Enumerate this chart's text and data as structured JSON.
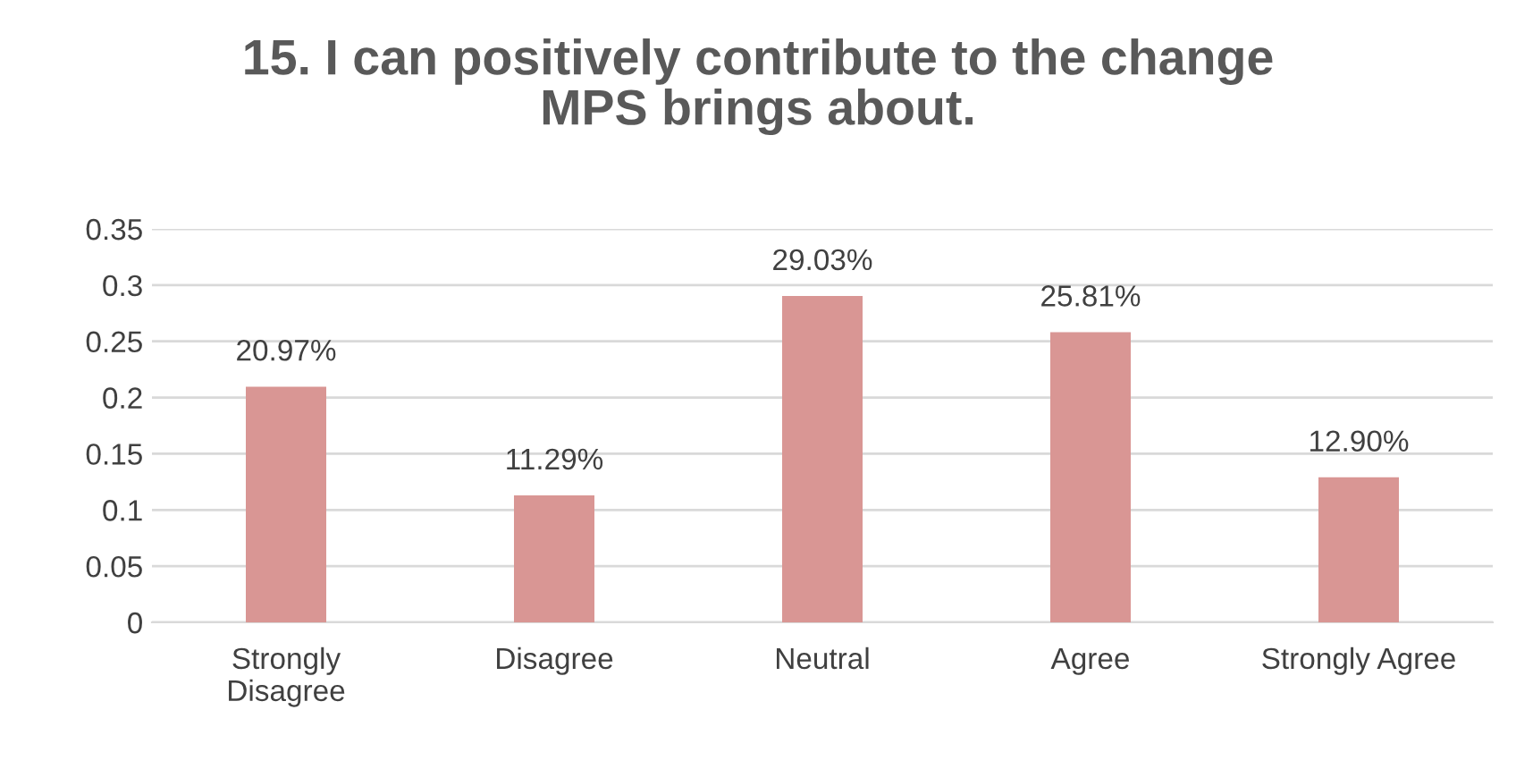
{
  "chart_data": {
    "type": "bar",
    "title": "15. I can positively contribute to the change MPS brings about.",
    "categories": [
      "Strongly Disagree",
      "Disagree",
      "Neutral",
      "Agree",
      "Strongly Agree"
    ],
    "values": [
      0.2097,
      0.1129,
      0.2903,
      0.2581,
      0.129
    ],
    "value_labels": [
      "20.97%",
      "11.29%",
      "29.03%",
      "25.81%",
      "12.90%"
    ],
    "color": "#d99694",
    "ylim": [
      0,
      0.35
    ],
    "yticks": [
      0,
      0.05,
      0.1,
      0.15,
      0.2,
      0.25,
      0.3,
      0.35
    ],
    "grid": "y"
  }
}
